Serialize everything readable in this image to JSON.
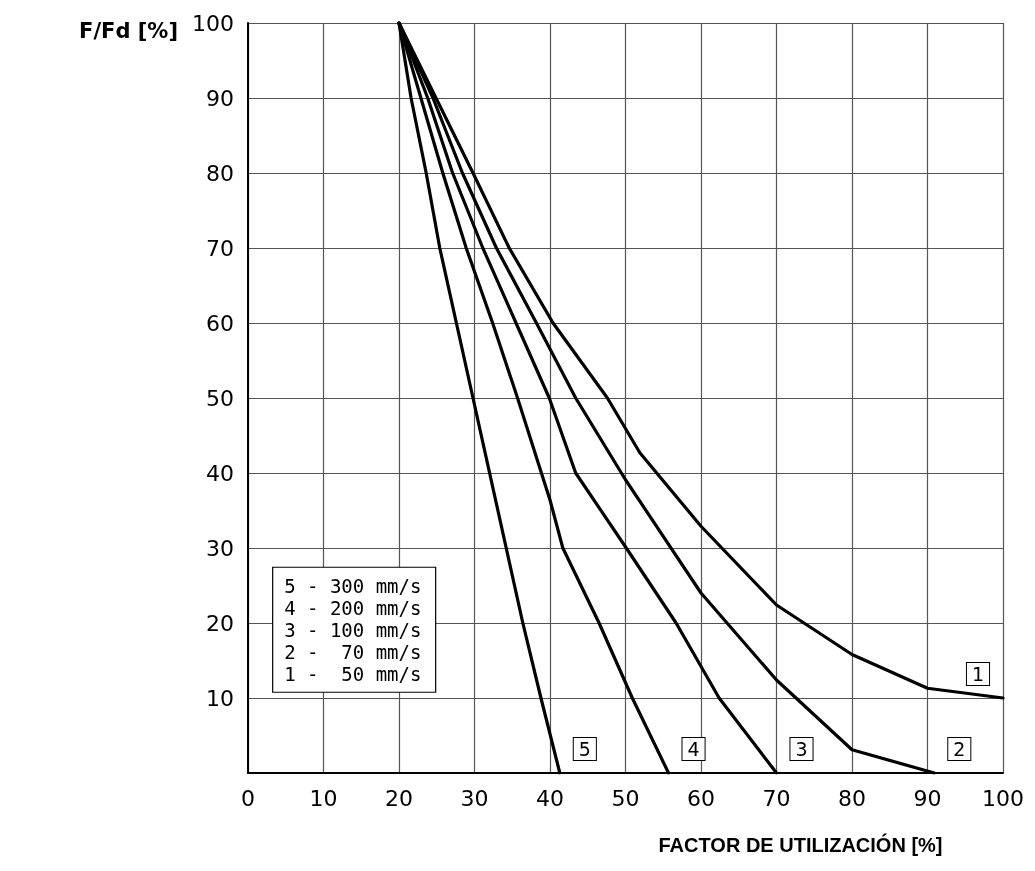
{
  "chart_data": {
    "type": "line",
    "xlabel": "FACTOR DE UTILIZACIÓN [%]",
    "ylabel": "F/Fd [%]",
    "xlim": [
      0,
      100
    ],
    "xticks": [
      0,
      10,
      20,
      30,
      40,
      50,
      60,
      70,
      80,
      90,
      100
    ],
    "ylim": [
      0,
      100
    ],
    "yticks": [
      {
        "value": 0,
        "label": null
      },
      10,
      20,
      30,
      40,
      50,
      60,
      70,
      80,
      90,
      100
    ],
    "grid": true,
    "marker": "none",
    "line_style": "solid",
    "legend": false,
    "annotations": [
      "5 - 300 mm/s",
      "4 - 200 mm/s",
      "3 - 100 mm/s",
      "2 -  70 mm/s",
      "1 -  50 mm/s"
    ],
    "series": [
      {
        "name": "1",
        "color": "#000000",
        "x": [
          20,
          24.9,
          29.8,
          34.6,
          40.4,
          47.6,
          51.9,
          60,
          70,
          80,
          90,
          100
        ],
        "values": [
          100,
          90,
          80,
          70,
          60,
          50,
          42.7,
          32.9,
          22.4,
          15.8,
          11.3,
          10
        ]
      },
      {
        "name": "2",
        "color": "#000000",
        "x": [
          20,
          24.5,
          28.4,
          32.9,
          38.2,
          43.4,
          50,
          60,
          70,
          80,
          90.9
        ],
        "values": [
          100,
          90,
          80,
          70,
          60,
          50,
          39.1,
          24,
          12.4,
          3.1,
          0
        ]
      },
      {
        "name": "3",
        "color": "#000000",
        "x": [
          20,
          23.8,
          27.1,
          31.1,
          35.5,
          39.9,
          43.4,
          50.1,
          56.7,
          62.4,
          70
        ],
        "values": [
          100,
          90,
          80,
          70,
          60,
          50,
          40,
          30,
          20,
          10,
          0
        ]
      },
      {
        "name": "4",
        "color": "#000000",
        "x": [
          20,
          22.9,
          25.8,
          28.9,
          32.4,
          35.7,
          40,
          41.7,
          46.5,
          50.9,
          55.7
        ],
        "values": [
          100,
          90,
          80,
          70,
          60,
          50,
          36.4,
          30,
          20,
          10,
          0
        ]
      },
      {
        "name": "5",
        "color": "#000000",
        "x": [
          20,
          21.6,
          23.6,
          25.4,
          27.6,
          29.8,
          36.4,
          38.8,
          41.3
        ],
        "values": [
          100,
          90,
          80,
          70,
          60,
          50,
          20,
          10,
          0
        ]
      }
    ]
  }
}
